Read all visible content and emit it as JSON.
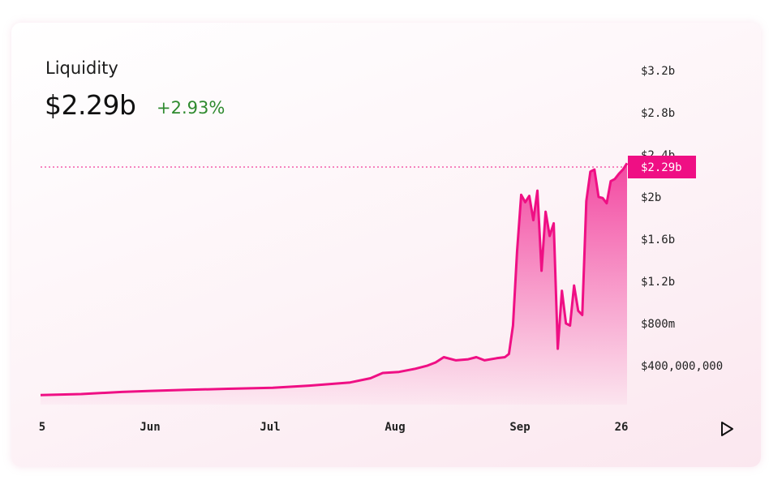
{
  "header": {
    "title": "Liquidity",
    "current_value": "$2.29b",
    "change": "+2.93%"
  },
  "colors": {
    "line": "#ef0f84",
    "change_positive": "#2f8a2f",
    "badge_bg": "#ef0f84",
    "badge_text": "#ffffff"
  },
  "current_badge": "$2.29b",
  "controls": {
    "play_icon": "play-icon"
  },
  "chart_data": {
    "type": "area",
    "title": "Liquidity",
    "x_labels": [
      "5",
      "Jun",
      "Jul",
      "Aug",
      "Sep",
      "26"
    ],
    "y_tick_labels": [
      "$3.2b",
      "$2.8b",
      "$2.4b",
      "$2b",
      "$1.6b",
      "$1.2b",
      "$800m",
      "$400,000,000"
    ],
    "y_range": [
      0,
      3.2
    ],
    "y_unit": "billions USD",
    "grid": false,
    "current_value": 2.29,
    "series": [
      {
        "x": [
          "May 5",
          "May 15",
          "May 25",
          "Jun 1",
          "Jun 10",
          "Jun 20",
          "Jul 1",
          "Jul 10",
          "Jul 20",
          "Jul 25",
          "Jul 28",
          "Aug 1",
          "Aug 5",
          "Aug 8",
          "Aug 10",
          "Aug 12",
          "Aug 15",
          "Aug 18",
          "Aug 20",
          "Aug 22",
          "Aug 25",
          "Aug 27",
          "Aug 28",
          "Aug 29",
          "Aug 30",
          "Aug 31",
          "Sep 1",
          "Sep 2",
          "Sep 3",
          "Sep 4",
          "Sep 5",
          "Sep 6",
          "Sep 7",
          "Sep 8",
          "Sep 9",
          "Sep 10",
          "Sep 11",
          "Sep 12",
          "Sep 13",
          "Sep 14",
          "Sep 15",
          "Sep 16",
          "Sep 17",
          "Sep 18",
          "Sep 19",
          "Sep 20",
          "Sep 21",
          "Sep 22",
          "Sep 23",
          "Sep 24",
          "Sep 25",
          "Sep 26"
        ],
        "y": [
          0.09,
          0.1,
          0.12,
          0.13,
          0.14,
          0.15,
          0.16,
          0.18,
          0.21,
          0.25,
          0.3,
          0.31,
          0.34,
          0.37,
          0.4,
          0.45,
          0.42,
          0.43,
          0.45,
          0.42,
          0.44,
          0.45,
          0.48,
          0.75,
          1.45,
          1.99,
          1.92,
          1.98,
          1.75,
          2.03,
          1.27,
          1.83,
          1.6,
          1.72,
          0.53,
          1.08,
          0.77,
          0.75,
          1.13,
          0.89,
          0.85,
          1.93,
          2.21,
          2.23,
          1.97,
          1.96,
          1.91,
          2.12,
          2.14,
          2.19,
          2.23,
          2.29
        ]
      }
    ]
  }
}
